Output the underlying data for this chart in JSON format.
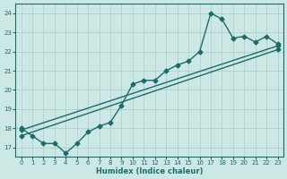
{
  "xlabel": "Humidex (Indice chaleur)",
  "ylabel": "",
  "xlim": [
    -0.5,
    23.5
  ],
  "ylim": [
    16.5,
    24.5
  ],
  "yticks": [
    17,
    18,
    19,
    20,
    21,
    22,
    23,
    24
  ],
  "xticks": [
    0,
    1,
    2,
    3,
    4,
    5,
    6,
    7,
    8,
    9,
    10,
    11,
    12,
    13,
    14,
    15,
    16,
    17,
    18,
    19,
    20,
    21,
    22,
    23
  ],
  "bg_color": "#cce8e4",
  "grid_color": "#aaccca",
  "line_color": "#1a6b6b",
  "line1_x": [
    0,
    1,
    2,
    3,
    4,
    5,
    6,
    7,
    8,
    9,
    10,
    11,
    12,
    13,
    14,
    15,
    16,
    17,
    18,
    19,
    20,
    21,
    22,
    23
  ],
  "line1_y": [
    18.0,
    17.6,
    17.2,
    17.2,
    16.7,
    17.2,
    17.8,
    18.1,
    18.3,
    19.2,
    20.3,
    20.5,
    20.5,
    21.0,
    21.3,
    21.5,
    22.0,
    24.0,
    23.7,
    22.7,
    22.8,
    22.5,
    22.8,
    22.4
  ],
  "line2_x": [
    0,
    23
  ],
  "line2_y": [
    17.9,
    22.3
  ],
  "line3_x": [
    0,
    23
  ],
  "line3_y": [
    17.6,
    22.1
  ],
  "marker_size": 2.5,
  "linewidth": 1.0,
  "spine_linewidth": 0.8
}
